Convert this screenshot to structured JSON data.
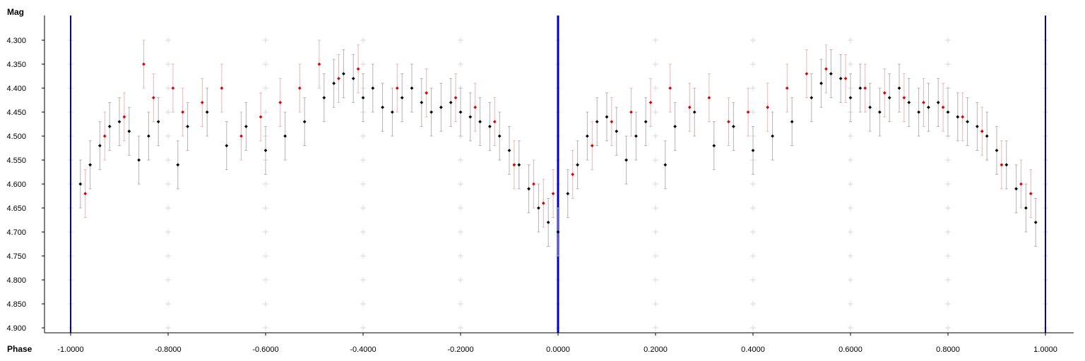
{
  "chart_data": {
    "type": "scatter",
    "title": "",
    "xlabel": "Phase",
    "ylabel": "Mag",
    "xlim": [
      -1.0,
      1.0
    ],
    "ylim": [
      4.3,
      4.9
    ],
    "y_inverted": true,
    "x_ticks": [
      "-1.0000",
      "-0.8000",
      "-0.6000",
      "-0.4000",
      "-0.2000",
      "0.0000",
      "0.2000",
      "0.4000",
      "0.6000",
      "0.8000",
      "1.0000"
    ],
    "y_ticks": [
      "4.300",
      "4.350",
      "4.400",
      "4.450",
      "4.500",
      "4.550",
      "4.600",
      "4.650",
      "4.700",
      "4.750",
      "4.800",
      "4.850",
      "4.900"
    ],
    "vertical_markers": [
      -1.0,
      0.0,
      1.0
    ],
    "marker_color": "#0000cc",
    "grid": "plus-markers",
    "error_bar_half_width": 0.05,
    "series": [
      {
        "color": "#000000",
        "errorbar_color": "#b4b4b4",
        "points": [
          [
            -0.98,
            4.6
          ],
          [
            -0.96,
            4.56
          ],
          [
            -0.94,
            4.52
          ],
          [
            -0.92,
            4.48
          ],
          [
            -0.9,
            4.47
          ],
          [
            -0.88,
            4.49
          ],
          [
            -0.86,
            4.55
          ],
          [
            -0.84,
            4.5
          ],
          [
            -0.82,
            4.47
          ],
          [
            -0.78,
            4.56
          ],
          [
            -0.76,
            4.48
          ],
          [
            -0.72,
            4.45
          ],
          [
            -0.68,
            4.52
          ],
          [
            -0.64,
            4.48
          ],
          [
            -0.6,
            4.53
          ],
          [
            -0.56,
            4.5
          ],
          [
            -0.52,
            4.47
          ],
          [
            -0.48,
            4.42
          ],
          [
            -0.46,
            4.39
          ],
          [
            -0.44,
            4.37
          ],
          [
            -0.42,
            4.38
          ],
          [
            -0.4,
            4.42
          ],
          [
            -0.38,
            4.4
          ],
          [
            -0.36,
            4.44
          ],
          [
            -0.34,
            4.45
          ],
          [
            -0.32,
            4.42
          ],
          [
            -0.3,
            4.4
          ],
          [
            -0.28,
            4.43
          ],
          [
            -0.26,
            4.45
          ],
          [
            -0.24,
            4.44
          ],
          [
            -0.22,
            4.43
          ],
          [
            -0.2,
            4.45
          ],
          [
            -0.18,
            4.46
          ],
          [
            -0.16,
            4.47
          ],
          [
            -0.14,
            4.48
          ],
          [
            -0.12,
            4.5
          ],
          [
            -0.1,
            4.53
          ],
          [
            -0.08,
            4.56
          ],
          [
            -0.06,
            4.61
          ],
          [
            -0.04,
            4.65
          ],
          [
            -0.02,
            4.68
          ],
          [
            0.0,
            4.7
          ],
          [
            0.02,
            4.62
          ],
          [
            0.04,
            4.56
          ],
          [
            0.06,
            4.5
          ],
          [
            0.08,
            4.47
          ],
          [
            0.1,
            4.46
          ],
          [
            0.12,
            4.49
          ],
          [
            0.14,
            4.55
          ],
          [
            0.16,
            4.5
          ],
          [
            0.18,
            4.47
          ],
          [
            0.22,
            4.56
          ],
          [
            0.24,
            4.48
          ],
          [
            0.28,
            4.45
          ],
          [
            0.32,
            4.52
          ],
          [
            0.36,
            4.48
          ],
          [
            0.4,
            4.53
          ],
          [
            0.44,
            4.5
          ],
          [
            0.48,
            4.47
          ],
          [
            0.52,
            4.42
          ],
          [
            0.54,
            4.39
          ],
          [
            0.56,
            4.37
          ],
          [
            0.58,
            4.38
          ],
          [
            0.6,
            4.42
          ],
          [
            0.62,
            4.4
          ],
          [
            0.64,
            4.44
          ],
          [
            0.66,
            4.45
          ],
          [
            0.68,
            4.42
          ],
          [
            0.7,
            4.4
          ],
          [
            0.72,
            4.43
          ],
          [
            0.74,
            4.45
          ],
          [
            0.76,
            4.44
          ],
          [
            0.78,
            4.43
          ],
          [
            0.8,
            4.45
          ],
          [
            0.82,
            4.46
          ],
          [
            0.84,
            4.47
          ],
          [
            0.86,
            4.48
          ],
          [
            0.88,
            4.5
          ],
          [
            0.9,
            4.53
          ],
          [
            0.92,
            4.56
          ],
          [
            0.94,
            4.61
          ],
          [
            0.96,
            4.65
          ],
          [
            0.98,
            4.68
          ]
        ]
      },
      {
        "color": "#e00000",
        "errorbar_color": "#f0b4b4",
        "points": [
          [
            -0.97,
            4.62
          ],
          [
            -0.93,
            4.5
          ],
          [
            -0.89,
            4.46
          ],
          [
            -0.85,
            4.35
          ],
          [
            -0.83,
            4.42
          ],
          [
            -0.79,
            4.4
          ],
          [
            -0.77,
            4.45
          ],
          [
            -0.73,
            4.43
          ],
          [
            -0.69,
            4.4
          ],
          [
            -0.65,
            4.5
          ],
          [
            -0.61,
            4.46
          ],
          [
            -0.57,
            4.43
          ],
          [
            -0.53,
            4.4
          ],
          [
            -0.49,
            4.35
          ],
          [
            -0.45,
            4.38
          ],
          [
            -0.41,
            4.36
          ],
          [
            -0.33,
            4.4
          ],
          [
            -0.27,
            4.41
          ],
          [
            -0.21,
            4.42
          ],
          [
            -0.17,
            4.44
          ],
          [
            -0.13,
            4.47
          ],
          [
            -0.09,
            4.56
          ],
          [
            -0.05,
            4.6
          ],
          [
            -0.03,
            4.64
          ],
          [
            -0.01,
            4.62
          ],
          [
            0.03,
            4.58
          ],
          [
            0.07,
            4.52
          ],
          [
            0.11,
            4.47
          ],
          [
            0.15,
            4.45
          ],
          [
            0.19,
            4.43
          ],
          [
            0.23,
            4.4
          ],
          [
            0.27,
            4.44
          ],
          [
            0.31,
            4.42
          ],
          [
            0.35,
            4.47
          ],
          [
            0.39,
            4.45
          ],
          [
            0.43,
            4.44
          ],
          [
            0.47,
            4.4
          ],
          [
            0.51,
            4.37
          ],
          [
            0.55,
            4.36
          ],
          [
            0.59,
            4.38
          ],
          [
            0.63,
            4.4
          ],
          [
            0.67,
            4.41
          ],
          [
            0.71,
            4.42
          ],
          [
            0.75,
            4.43
          ],
          [
            0.79,
            4.44
          ],
          [
            0.83,
            4.46
          ],
          [
            0.87,
            4.49
          ],
          [
            0.91,
            4.56
          ],
          [
            0.95,
            4.6
          ],
          [
            0.97,
            4.62
          ]
        ]
      }
    ]
  }
}
